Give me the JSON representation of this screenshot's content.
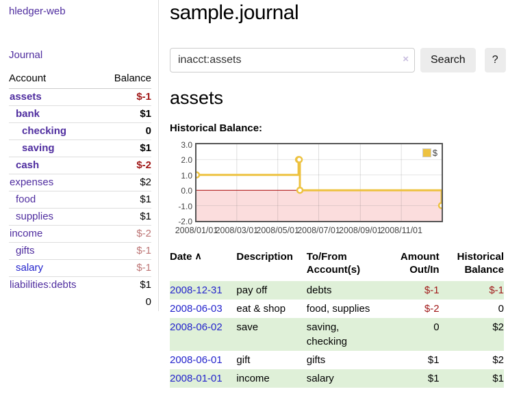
{
  "colors": {
    "link_purple": "#4f2d9f",
    "link_blue": "#2222cc",
    "negative_strong": "#a01818",
    "negative_muted": "#bd7575",
    "row_stripe_green": "#dff0d8",
    "chart_line_gold": "#edc240",
    "chart_negative_region": "#fbdddd",
    "chart_zero_line": "#a80000",
    "button_gray": "#ececec",
    "border_gray": "#dddddd"
  },
  "sidebar": {
    "brand": "hledger-web",
    "nav": [
      {
        "label": "Journal"
      }
    ],
    "accounts_table": {
      "headers": [
        "Account",
        "Balance"
      ],
      "rows": [
        {
          "name": "assets",
          "balance": "$-1",
          "depth": 1,
          "emphasized": true,
          "sign": "neg-strong"
        },
        {
          "name": "bank",
          "balance": "$1",
          "depth": 2,
          "emphasized": true,
          "sign": null
        },
        {
          "name": "checking",
          "balance": "0",
          "depth": 3,
          "emphasized": true,
          "sign": null
        },
        {
          "name": "saving",
          "balance": "$1",
          "depth": 3,
          "emphasized": true,
          "sign": null
        },
        {
          "name": "cash",
          "balance": "$-2",
          "depth": 2,
          "emphasized": true,
          "sign": "neg-strong"
        },
        {
          "name": "expenses",
          "balance": "$2",
          "depth": 1,
          "emphasized": false,
          "sign": null
        },
        {
          "name": "food",
          "balance": "$1",
          "depth": 2,
          "emphasized": false,
          "sign": null
        },
        {
          "name": "supplies",
          "balance": "$1",
          "depth": 2,
          "emphasized": false,
          "sign": null
        },
        {
          "name": "income",
          "balance": "$-2",
          "depth": 1,
          "emphasized": false,
          "sign": "neg-muted"
        },
        {
          "name": "gifts",
          "balance": "$-1",
          "depth": 2,
          "emphasized": false,
          "sign": "neg-muted"
        },
        {
          "name": "salary",
          "balance": "$-1",
          "depth": 2,
          "emphasized": false,
          "sign": "neg-muted",
          "link_style": "blue"
        },
        {
          "name": "liabilities:debts",
          "balance": "$1",
          "depth": 1,
          "emphasized": false,
          "sign": null
        }
      ],
      "total": "0"
    }
  },
  "header": {
    "title": "sample.journal"
  },
  "search": {
    "value": "inacct:assets",
    "clear_icon": "×",
    "button_label": "Search",
    "help_label": "?"
  },
  "account_page": {
    "heading": "assets",
    "chart_label": "Historical Balance:"
  },
  "chart_data": {
    "type": "line",
    "title": "Historical Balance:",
    "step": true,
    "xlim": [
      "2008-01-01",
      "2008-12-31"
    ],
    "ylim": [
      -2.0,
      3.0
    ],
    "x_ticks": [
      "2008/01/01",
      "2008/03/01",
      "2008/05/01",
      "2008/07/01",
      "2008/09/01",
      "2008/11/01"
    ],
    "y_ticks": [
      "3.0",
      "2.0",
      "1.0",
      "0.0",
      "-1.0",
      "-2.0"
    ],
    "grid": true,
    "legend_position": "top-right",
    "series": [
      {
        "name": "$",
        "color": "#edc240",
        "points": [
          [
            "2008-01-01",
            1
          ],
          [
            "2008-06-01",
            2
          ],
          [
            "2008-06-02",
            2
          ],
          [
            "2008-06-03",
            0
          ],
          [
            "2008-12-31",
            -1
          ]
        ]
      }
    ],
    "negative_region_below": 0
  },
  "register": {
    "columns": [
      "Date",
      "Description",
      "To/From Account(s)",
      "Amount Out/In",
      "Historical Balance"
    ],
    "sort_icon": "∧",
    "rows": [
      {
        "date": "2008-12-31",
        "description": "pay off",
        "accounts": [
          "debts"
        ],
        "amount": "$-1",
        "amount_negative": true,
        "balance": "$-1",
        "balance_negative": true
      },
      {
        "date": "2008-06-03",
        "description": "eat & shop",
        "accounts": [
          "food",
          "supplies"
        ],
        "amount": "$-2",
        "amount_negative": true,
        "balance": "0",
        "balance_negative": false
      },
      {
        "date": "2008-06-02",
        "description": "save",
        "accounts": [
          "saving",
          "checking"
        ],
        "amount": "0",
        "amount_negative": false,
        "balance": "$2",
        "balance_negative": false
      },
      {
        "date": "2008-06-01",
        "description": "gift",
        "accounts": [
          "gifts"
        ],
        "amount": "$1",
        "amount_negative": false,
        "balance": "$2",
        "balance_negative": false
      },
      {
        "date": "2008-01-01",
        "description": "income",
        "accounts": [
          "salary"
        ],
        "amount": "$1",
        "amount_negative": false,
        "balance": "$1",
        "balance_negative": false
      }
    ]
  }
}
